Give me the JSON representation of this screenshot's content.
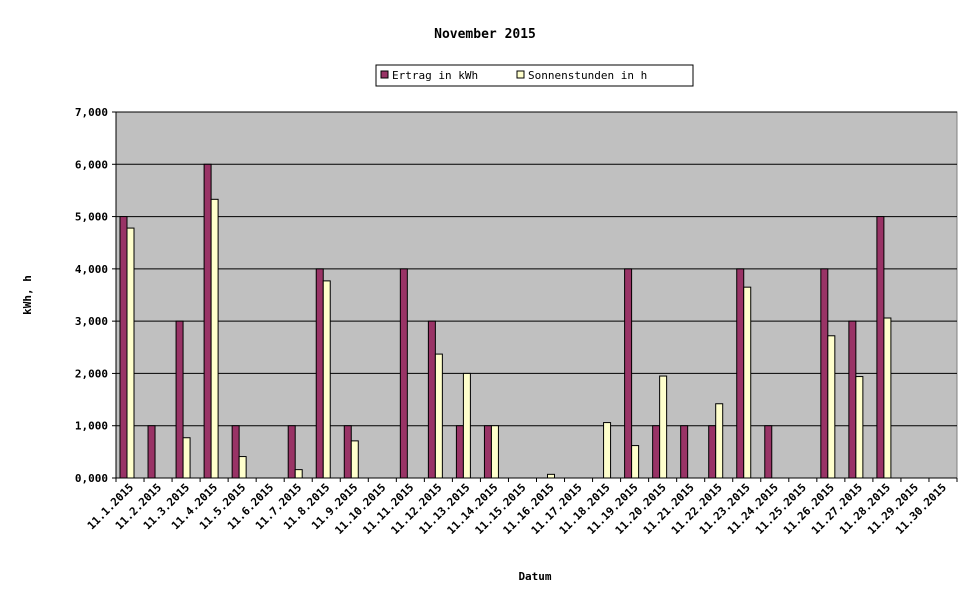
{
  "chart_data": {
    "type": "bar",
    "title": "November 2015",
    "xlabel": "Datum",
    "ylabel": "kWh, h",
    "ylim": [
      0,
      7
    ],
    "ytick_values": [
      0,
      1,
      2,
      3,
      4,
      5,
      6,
      7
    ],
    "ytick_labels": [
      "0,000",
      "1,000",
      "2,000",
      "3,000",
      "4,000",
      "5,000",
      "6,000",
      "7,000"
    ],
    "grid": true,
    "legend_position": "top-center",
    "plot_background": "#c0c0c0",
    "categories": [
      "11.1.2015",
      "11.2.2015",
      "11.3.2015",
      "11.4.2015",
      "11.5.2015",
      "11.6.2015",
      "11.7.2015",
      "11.8.2015",
      "11.9.2015",
      "11.10.2015",
      "11.11.2015",
      "11.12.2015",
      "11.13.2015",
      "11.14.2015",
      "11.15.2015",
      "11.16.2015",
      "11.17.2015",
      "11.18.2015",
      "11.19.2015",
      "11.20.2015",
      "11.21.2015",
      "11.22.2015",
      "11.23.2015",
      "11.24.2015",
      "11.25.2015",
      "11.26.2015",
      "11.27.2015",
      "11.28.2015",
      "11.29.2015",
      "11.30.2015"
    ],
    "series": [
      {
        "name": "Ertrag in kWh",
        "color": "#993366",
        "values": [
          5,
          1,
          3,
          6,
          1,
          0,
          1,
          4,
          1,
          0,
          4,
          3,
          1,
          1,
          0,
          0,
          0,
          0,
          4,
          1,
          1,
          1,
          4,
          1,
          0,
          4,
          3,
          5,
          0,
          0
        ]
      },
      {
        "name": "Sonnenstunden in h",
        "color": "#ffffcc",
        "values": [
          4.78,
          0,
          0.77,
          5.33,
          0.41,
          0,
          0.16,
          3.77,
          0.71,
          0,
          0,
          2.37,
          2.0,
          1.0,
          0,
          0.07,
          0,
          1.06,
          0.62,
          1.95,
          0,
          1.42,
          3.65,
          0,
          0,
          2.72,
          1.94,
          3.06,
          0,
          0
        ]
      }
    ]
  }
}
